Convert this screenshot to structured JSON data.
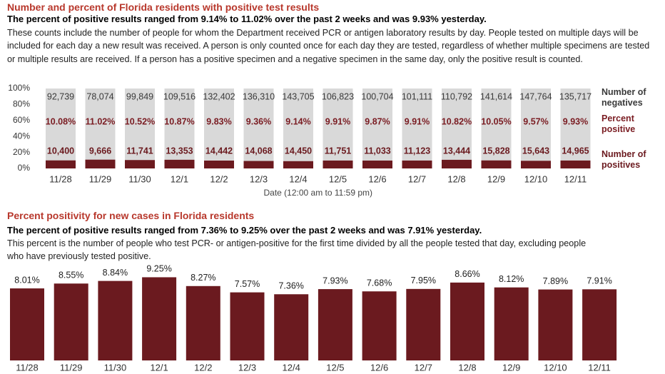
{
  "chart_data": [
    {
      "type": "stacked_percent_bar",
      "title": "Number and percent of Florida residents with positive test results",
      "subtitle": "The percent of positive results ranged from 9.14% to 11.02% over the past 2 weeks and was 9.93% yesterday.",
      "description": "These counts include the number of people for whom the Department received PCR or antigen laboratory results by day. People tested on multiple days will be included for each day a new result was received. A person is only counted once for each day they are tested, regardless of whether multiple specimens are tested or multiple results are received. If a person has a positive specimen and a negative specimen in the same day, only the positive result is counted.",
      "x_label": "Date (12:00 am to 11:59 pm)",
      "categories": [
        "11/28",
        "11/29",
        "11/30",
        "12/1",
        "12/2",
        "12/3",
        "12/4",
        "12/5",
        "12/6",
        "12/7",
        "12/8",
        "12/9",
        "12/10",
        "12/11"
      ],
      "ylim": [
        0,
        100
      ],
      "yticks": [
        {
          "value": 0,
          "label": "0%"
        },
        {
          "value": 20,
          "label": "20%"
        },
        {
          "value": 40,
          "label": "40%"
        },
        {
          "value": 60,
          "label": "60%"
        },
        {
          "value": 80,
          "label": "80%"
        },
        {
          "value": 100,
          "label": "100%"
        }
      ],
      "series": [
        {
          "name": "Number of negatives",
          "color": "#d9d9d9",
          "label_color": "#3a3a3a",
          "values": [
            92739,
            78074,
            99849,
            109516,
            132402,
            136310,
            143705,
            106823,
            100704,
            101111,
            110792,
            141614,
            147764,
            135717
          ],
          "value_labels": [
            "92,739",
            "78,074",
            "99,849",
            "109,516",
            "132,402",
            "136,310",
            "143,705",
            "106,823",
            "100,704",
            "101,111",
            "110,792",
            "141,614",
            "147,764",
            "135,717"
          ]
        },
        {
          "name": "Percent positive",
          "label_color": "#7a1c22",
          "values": [
            10.08,
            11.02,
            10.52,
            10.87,
            9.83,
            9.36,
            9.14,
            9.91,
            9.87,
            9.91,
            10.82,
            10.05,
            9.57,
            9.93
          ],
          "value_labels": [
            "10.08%",
            "11.02%",
            "10.52%",
            "10.87%",
            "9.83%",
            "9.36%",
            "9.14%",
            "9.91%",
            "9.87%",
            "9.91%",
            "10.82%",
            "10.05%",
            "9.57%",
            "9.93%"
          ]
        },
        {
          "name": "Number of positives",
          "color": "#6b1a1f",
          "label_color": "#6b1a1f",
          "values": [
            10400,
            9666,
            11741,
            13353,
            14442,
            14068,
            14450,
            11751,
            11033,
            11123,
            13444,
            15828,
            15643,
            14965
          ],
          "value_labels": [
            "10,400",
            "9,666",
            "11,741",
            "13,353",
            "14,442",
            "14,068",
            "14,450",
            "11,751",
            "11,033",
            "11,123",
            "13,444",
            "15,828",
            "15,643",
            "14,965"
          ]
        }
      ]
    },
    {
      "type": "bar",
      "title": "Percent positivity for new cases in Florida residents",
      "subtitle": "The percent of positive results ranged from 7.36% to 9.25% over the past 2 weeks and was 7.91% yesterday.",
      "description": "This percent is the number of people who test PCR- or antigen-positive for the first time divided by all the people tested that day, excluding people who have previously tested positive.",
      "categories": [
        "11/28",
        "11/29",
        "11/30",
        "12/1",
        "12/2",
        "12/3",
        "12/4",
        "12/5",
        "12/6",
        "12/7",
        "12/8",
        "12/9",
        "12/10",
        "12/11"
      ],
      "values": [
        8.01,
        8.55,
        8.84,
        9.25,
        8.27,
        7.57,
        7.36,
        7.93,
        7.68,
        7.95,
        8.66,
        8.12,
        7.89,
        7.91
      ],
      "value_labels": [
        "8.01%",
        "8.55%",
        "8.84%",
        "9.25%",
        "8.27%",
        "7.57%",
        "7.36%",
        "7.93%",
        "7.68%",
        "7.95%",
        "8.66%",
        "8.12%",
        "7.89%",
        "7.91%"
      ],
      "color": "#6b1a1f"
    }
  ]
}
